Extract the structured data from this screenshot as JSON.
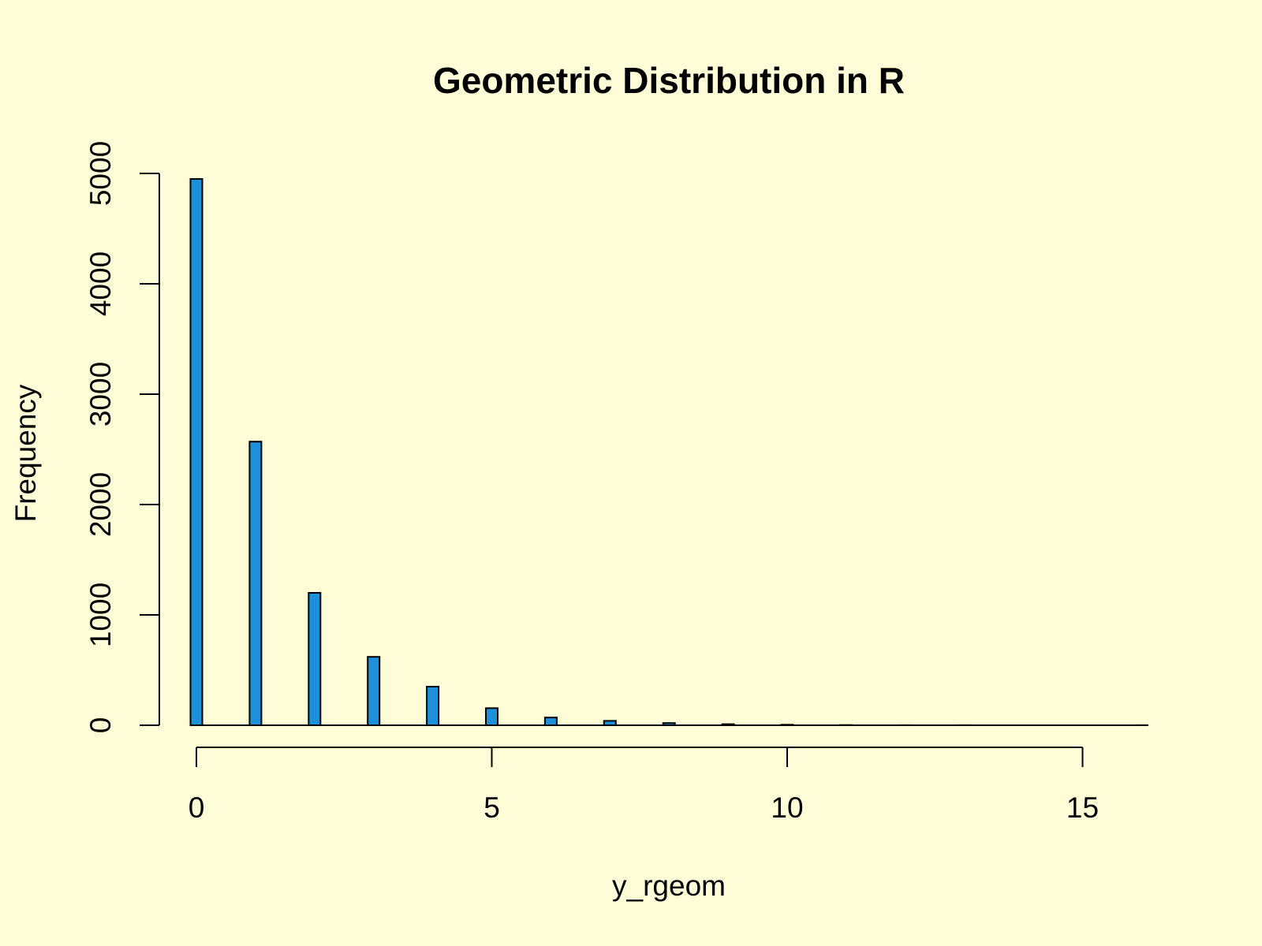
{
  "chart_data": {
    "type": "bar",
    "title": "Geometric Distribution in R",
    "xlabel": "y_rgeom",
    "ylabel": "Frequency",
    "bar_color": "#1E8FD9",
    "background": "#FFFDD8",
    "grid": false,
    "x": [
      0,
      1,
      2,
      3,
      4,
      5,
      6,
      7,
      8,
      9,
      10,
      11,
      12,
      13,
      14,
      15,
      16
    ],
    "values": [
      4950,
      2570,
      1200,
      620,
      350,
      155,
      70,
      40,
      20,
      10,
      5,
      2,
      1,
      1,
      0,
      0,
      1
    ],
    "xlim": [
      0,
      16
    ],
    "ylim": [
      0,
      5000
    ],
    "xticks": [
      0,
      5,
      10,
      15
    ],
    "yticks": [
      0,
      1000,
      2000,
      3000,
      4000,
      5000
    ]
  }
}
